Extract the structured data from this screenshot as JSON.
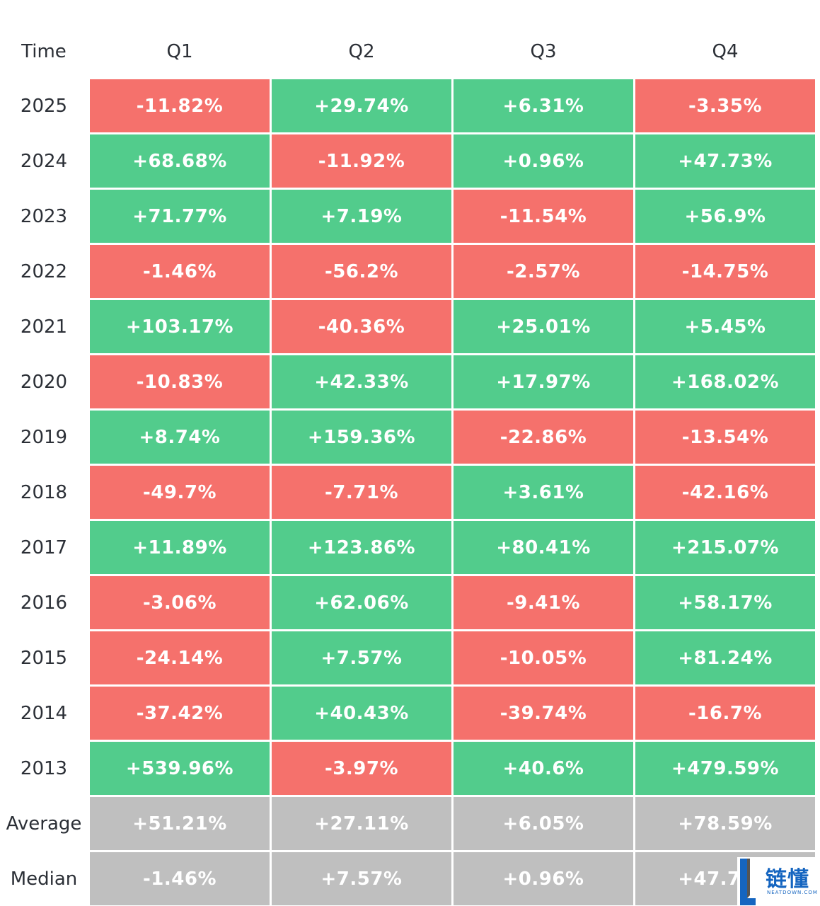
{
  "colors": {
    "up": "#52cc8c",
    "down": "#f5716c",
    "summary": "#bfbfbf"
  },
  "chart_data": {
    "type": "table",
    "header": [
      "Time",
      "Q1",
      "Q2",
      "Q3",
      "Q4"
    ],
    "rows": [
      {
        "label": "2025",
        "values": [
          "-11.82%",
          "+29.74%",
          "+6.31%",
          "-3.35%"
        ],
        "kind": "year"
      },
      {
        "label": "2024",
        "values": [
          "+68.68%",
          "-11.92%",
          "+0.96%",
          "+47.73%"
        ],
        "kind": "year"
      },
      {
        "label": "2023",
        "values": [
          "+71.77%",
          "+7.19%",
          "-11.54%",
          "+56.9%"
        ],
        "kind": "year"
      },
      {
        "label": "2022",
        "values": [
          "-1.46%",
          "-56.2%",
          "-2.57%",
          "-14.75%"
        ],
        "kind": "year"
      },
      {
        "label": "2021",
        "values": [
          "+103.17%",
          "-40.36%",
          "+25.01%",
          "+5.45%"
        ],
        "kind": "year"
      },
      {
        "label": "2020",
        "values": [
          "-10.83%",
          "+42.33%",
          "+17.97%",
          "+168.02%"
        ],
        "kind": "year"
      },
      {
        "label": "2019",
        "values": [
          "+8.74%",
          "+159.36%",
          "-22.86%",
          "-13.54%"
        ],
        "kind": "year"
      },
      {
        "label": "2018",
        "values": [
          "-49.7%",
          "-7.71%",
          "+3.61%",
          "-42.16%"
        ],
        "kind": "year"
      },
      {
        "label": "2017",
        "values": [
          "+11.89%",
          "+123.86%",
          "+80.41%",
          "+215.07%"
        ],
        "kind": "year"
      },
      {
        "label": "2016",
        "values": [
          "-3.06%",
          "+62.06%",
          "-9.41%",
          "+58.17%"
        ],
        "kind": "year"
      },
      {
        "label": "2015",
        "values": [
          "-24.14%",
          "+7.57%",
          "-10.05%",
          "+81.24%"
        ],
        "kind": "year"
      },
      {
        "label": "2014",
        "values": [
          "-37.42%",
          "+40.43%",
          "-39.74%",
          "-16.7%"
        ],
        "kind": "year"
      },
      {
        "label": "2013",
        "values": [
          "+539.96%",
          "-3.97%",
          "+40.6%",
          "+479.59%"
        ],
        "kind": "year"
      },
      {
        "label": "Average",
        "values": [
          "+51.21%",
          "+27.11%",
          "+6.05%",
          "+78.59%"
        ],
        "kind": "summary"
      },
      {
        "label": "Median",
        "values": [
          "-1.46%",
          "+7.57%",
          "+0.96%",
          "+47.73%"
        ],
        "kind": "summary"
      }
    ]
  },
  "watermark": {
    "name": "链懂",
    "subtitle": "NEATDOWN.COM",
    "icon": "neatdown-logo-icon"
  }
}
